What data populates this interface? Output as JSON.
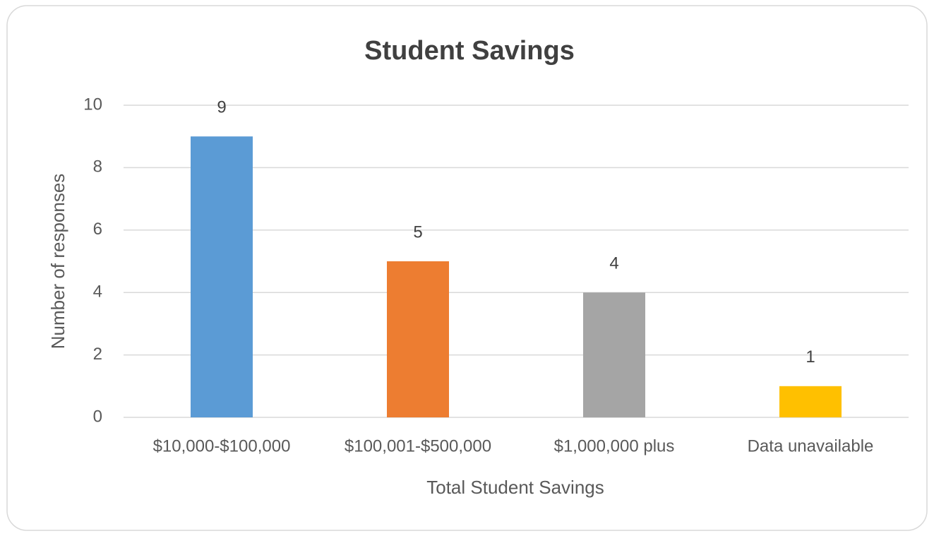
{
  "chart_data": {
    "type": "bar",
    "title": "Student Savings",
    "x_label": "Total Student Savings",
    "y_label": "Number of responses",
    "categories": [
      "$10,000-$100,000",
      "$100,001-$500,000",
      "$1,000,000 plus",
      "Data unavailable"
    ],
    "values": [
      9,
      5,
      4,
      1
    ],
    "colors": [
      "#5b9bd5",
      "#ed7d31",
      "#a5a5a5",
      "#ffc000"
    ],
    "ylim": [
      0,
      10
    ],
    "yticks": [
      0,
      2,
      4,
      6,
      8,
      10
    ],
    "grid": true
  }
}
